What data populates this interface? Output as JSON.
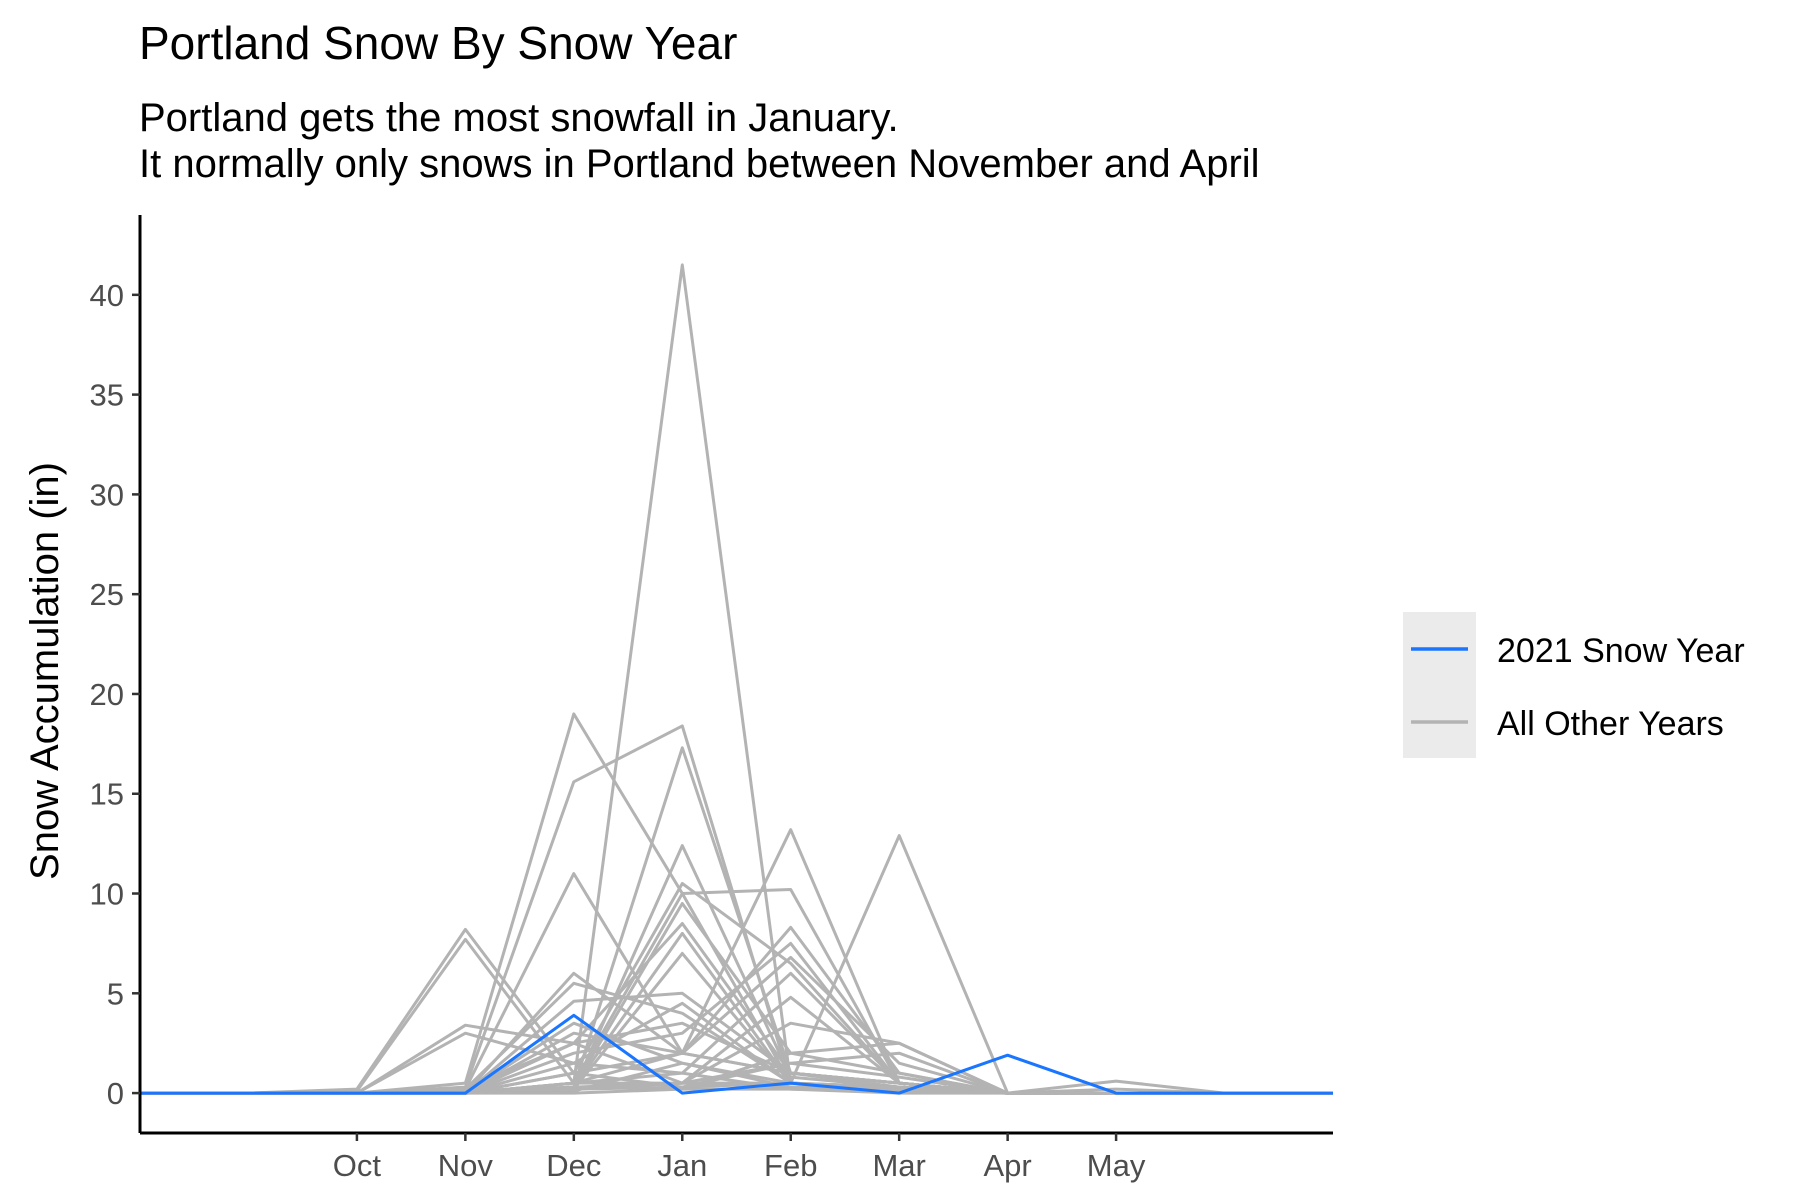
{
  "chart_data": {
    "type": "line",
    "title": "Portland Snow By Snow Year",
    "subtitle_lines": [
      "Portland gets the most snowfall in January.",
      "It normally only snows in Portland between November and April"
    ],
    "xlabel": "",
    "ylabel": "Snow Accumulation (in)",
    "month_positions": [
      -1,
      0,
      1,
      2,
      3,
      4,
      5,
      6,
      7,
      8,
      9,
      10
    ],
    "x_ticks": [
      {
        "pos": 1,
        "label": "Oct"
      },
      {
        "pos": 2,
        "label": "Nov"
      },
      {
        "pos": 3,
        "label": "Dec"
      },
      {
        "pos": 4,
        "label": "Jan"
      },
      {
        "pos": 5,
        "label": "Feb"
      },
      {
        "pos": 6,
        "label": "Mar"
      },
      {
        "pos": 7,
        "label": "Apr"
      },
      {
        "pos": 8,
        "label": "May"
      }
    ],
    "xlim": [
      -1,
      10
    ],
    "ylim": [
      -2,
      44
    ],
    "y_ticks": [
      0,
      5,
      10,
      15,
      20,
      25,
      30,
      35,
      40
    ],
    "grid": false,
    "legend": {
      "placement": "right",
      "entries": [
        {
          "label": "2021 Snow Year",
          "color": "#1a75ff"
        },
        {
          "label": "All Other Years",
          "color": "#b3b3b3"
        }
      ]
    },
    "highlight_series": {
      "name": "2021 Snow Year",
      "color": "#1a75ff",
      "values": [
        0,
        0,
        0,
        0,
        3.9,
        0,
        0.5,
        0,
        1.9,
        0,
        0,
        0
      ]
    },
    "other_series": {
      "name": "All Other Years",
      "color": "#b3b3b3",
      "values": [
        [
          0,
          0,
          0.2,
          8.2,
          1.0,
          0.3,
          0.5,
          0.2,
          0,
          0,
          0,
          0
        ],
        [
          0,
          0,
          0.1,
          7.7,
          0.5,
          2.0,
          1.0,
          0.3,
          0,
          0,
          0,
          0
        ],
        [
          0,
          0,
          0,
          3.4,
          2.5,
          0.5,
          0.3,
          0.1,
          0,
          0,
          0,
          0
        ],
        [
          0,
          0,
          0,
          3.0,
          1.5,
          1.0,
          0.2,
          0,
          0,
          0,
          0,
          0
        ],
        [
          0,
          0,
          0,
          0.5,
          19.0,
          10.0,
          0.5,
          0.2,
          0,
          0,
          0,
          0
        ],
        [
          0,
          0,
          0,
          0.3,
          15.6,
          18.4,
          0.5,
          0.3,
          0,
          0,
          0,
          0
        ],
        [
          0,
          0,
          0,
          0.2,
          11.0,
          2.0,
          1.0,
          0.5,
          0,
          0,
          0,
          0
        ],
        [
          0,
          0,
          0,
          0,
          6.0,
          2.0,
          13.2,
          0.5,
          0,
          0,
          0,
          0
        ],
        [
          0,
          0,
          0,
          0,
          0.5,
          41.5,
          0.5,
          0.2,
          0,
          0,
          0,
          0
        ],
        [
          0,
          0,
          0,
          0,
          0.3,
          17.3,
          1.0,
          0.5,
          0,
          0,
          0,
          0
        ],
        [
          0,
          0,
          0,
          0,
          0.2,
          12.4,
          0.8,
          0.3,
          0,
          0,
          0,
          0
        ],
        [
          0,
          0,
          0,
          0,
          1.0,
          10.5,
          6.5,
          0.5,
          0,
          0,
          0,
          0
        ],
        [
          0,
          0,
          0,
          0,
          0.5,
          10.0,
          10.2,
          0.5,
          0,
          0,
          0,
          0
        ],
        [
          0,
          0,
          0,
          0,
          0.3,
          9.5,
          2.0,
          1.0,
          0,
          0,
          0,
          0
        ],
        [
          0,
          0,
          0,
          0.2,
          2.5,
          8.5,
          1.0,
          0.5,
          0,
          0,
          0,
          0
        ],
        [
          0,
          0,
          0,
          0.1,
          0.3,
          8.0,
          0.5,
          0.3,
          0,
          0,
          0,
          0
        ],
        [
          0,
          0,
          0,
          0,
          0.2,
          7.0,
          0.5,
          0.2,
          0,
          0,
          0,
          0
        ],
        [
          0,
          0,
          0,
          0,
          4.6,
          5.0,
          1.0,
          0.5,
          0,
          0,
          0,
          0
        ],
        [
          0,
          0,
          0,
          0.2,
          5.5,
          4.0,
          0.5,
          0.3,
          0,
          0,
          0,
          0
        ],
        [
          0,
          0,
          0,
          0,
          3.0,
          2.0,
          8.3,
          1.0,
          0,
          0,
          0,
          0
        ],
        [
          0,
          0,
          0,
          0,
          2.0,
          3.0,
          7.5,
          0.5,
          0,
          0,
          0,
          0
        ],
        [
          0,
          0,
          0,
          0,
          1.0,
          2.0,
          6.8,
          1.5,
          0,
          0,
          0,
          0
        ],
        [
          0,
          0,
          0,
          0,
          0.5,
          1.0,
          6.0,
          0.5,
          0,
          0,
          0,
          0
        ],
        [
          0,
          0,
          0,
          0,
          0.3,
          0.5,
          4.8,
          0.5,
          0,
          0,
          0,
          0
        ],
        [
          0,
          0,
          0,
          0,
          0.5,
          0.5,
          3.5,
          2.5,
          0,
          0,
          0,
          0
        ],
        [
          0,
          0,
          0,
          0,
          0.2,
          0.5,
          0.5,
          12.9,
          0,
          0,
          0,
          0
        ],
        [
          0,
          0,
          0,
          0,
          0.3,
          0.2,
          2.0,
          2.5,
          0,
          0.6,
          0,
          0
        ],
        [
          0,
          0,
          0,
          0,
          0.2,
          0.3,
          1.5,
          2.0,
          0,
          0.2,
          0,
          0
        ],
        [
          0,
          0,
          0,
          0,
          3.5,
          1.5,
          0.5,
          0.2,
          0,
          0,
          0,
          0
        ],
        [
          0,
          0,
          0,
          0,
          2.5,
          3.5,
          1.0,
          0.5,
          0,
          0,
          0,
          0
        ],
        [
          0,
          0,
          0,
          0,
          1.5,
          4.5,
          0.5,
          0.2,
          0,
          0,
          0,
          0
        ],
        [
          0,
          0,
          0,
          0,
          0.2,
          0.5,
          1.5,
          0.8,
          0,
          0,
          0,
          0
        ],
        [
          0,
          0,
          0,
          0,
          0.1,
          1.5,
          0.3,
          0.3,
          0,
          0,
          0,
          0
        ],
        [
          0,
          0,
          0,
          0,
          0,
          0.2,
          0.2,
          0.1,
          0,
          0,
          0,
          0
        ]
      ]
    }
  }
}
